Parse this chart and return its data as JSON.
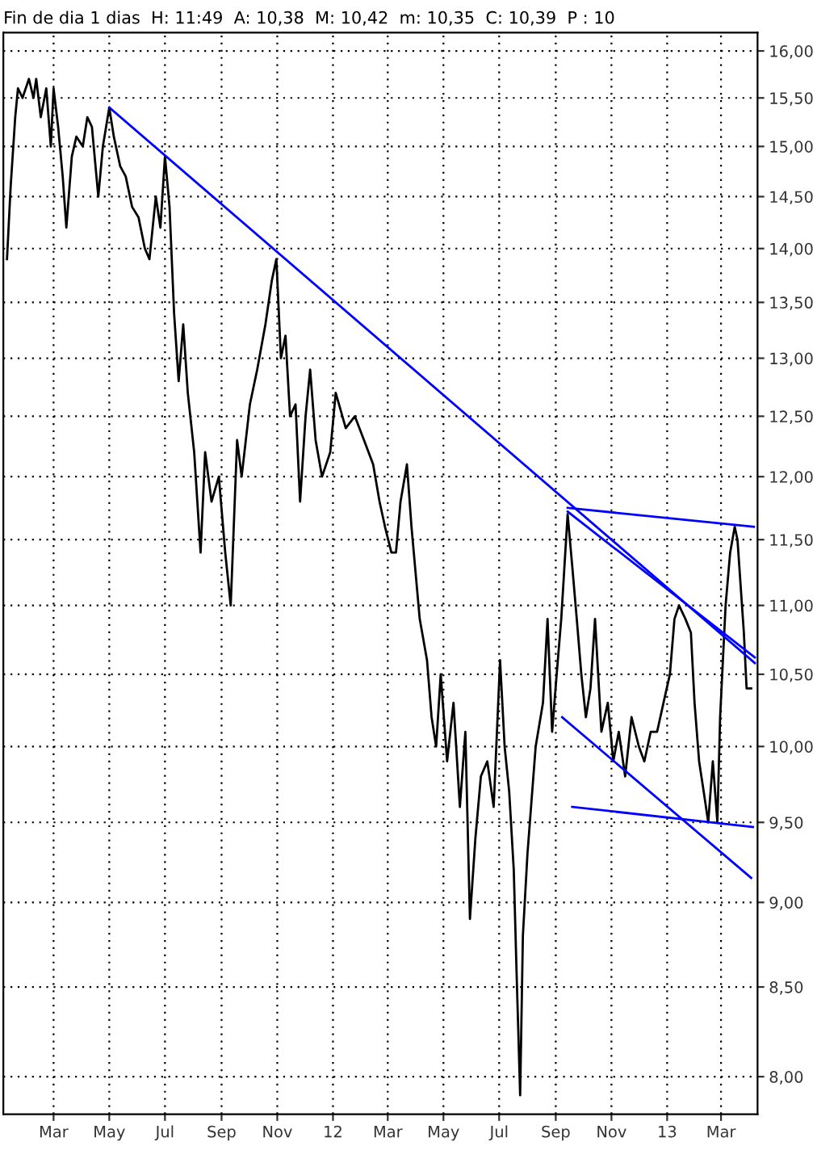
{
  "chart_data": {
    "type": "line",
    "title": "Fin de dia 1 dias  H: 11:49  A: 10,38  M: 10,42  m: 10,35  C: 10,39  P : 10",
    "log": "y",
    "grid": true,
    "line_style": "solid",
    "xlim": [
      "2011-01-05",
      "2013-04-10"
    ],
    "ylim": [
      7.8,
      16.2
    ],
    "xticks": [
      {
        "value": "2011-03-01",
        "label": "Mar"
      },
      {
        "value": "2011-05-01",
        "label": "May"
      },
      {
        "value": "2011-07-01",
        "label": "Jul"
      },
      {
        "value": "2011-09-01",
        "label": "Sep"
      },
      {
        "value": "2011-11-01",
        "label": "Nov"
      },
      {
        "value": "2012-01-01",
        "label": "12"
      },
      {
        "value": "2012-03-01",
        "label": "Mar"
      },
      {
        "value": "2012-05-01",
        "label": "May"
      },
      {
        "value": "2012-07-01",
        "label": "Jul"
      },
      {
        "value": "2012-09-01",
        "label": "Sep"
      },
      {
        "value": "2012-11-01",
        "label": "Nov"
      },
      {
        "value": "2013-01-01",
        "label": "13"
      },
      {
        "value": "2013-03-01",
        "label": "Mar"
      }
    ],
    "yticks": [
      {
        "value": 8.0,
        "label": "8,00"
      },
      {
        "value": 8.5,
        "label": "8,50"
      },
      {
        "value": 9.0,
        "label": "9,00"
      },
      {
        "value": 9.5,
        "label": "9,50"
      },
      {
        "value": 10.0,
        "label": "10,00"
      },
      {
        "value": 10.5,
        "label": "10,50"
      },
      {
        "value": 11.0,
        "label": "11,00"
      },
      {
        "value": 11.5,
        "label": "11,50"
      },
      {
        "value": 12.0,
        "label": "12,00"
      },
      {
        "value": 12.5,
        "label": "12,50"
      },
      {
        "value": 13.0,
        "label": "13,00"
      },
      {
        "value": 13.5,
        "label": "13,50"
      },
      {
        "value": 14.0,
        "label": "14,00"
      },
      {
        "value": 14.5,
        "label": "14,50"
      },
      {
        "value": 15.0,
        "label": "15,00"
      },
      {
        "value": 15.5,
        "label": "15,50"
      },
      {
        "value": 16.0,
        "label": "16,00"
      }
    ],
    "series": [
      {
        "color": "#000000",
        "x": [
          "2011-01-09",
          "2011-01-13",
          "2011-01-18",
          "2011-01-21",
          "2011-01-26",
          "2011-02-02",
          "2011-02-07",
          "2011-02-10",
          "2011-02-15",
          "2011-02-21",
          "2011-02-26",
          "2011-03-01",
          "2011-03-06",
          "2011-03-11",
          "2011-03-15",
          "2011-03-21",
          "2011-03-26",
          "2011-04-02",
          "2011-04-07",
          "2011-04-12",
          "2011-04-19",
          "2011-04-24",
          "2011-05-01",
          "2011-05-06",
          "2011-05-13",
          "2011-05-19",
          "2011-05-26",
          "2011-06-02",
          "2011-06-09",
          "2011-06-14",
          "2011-06-21",
          "2011-06-26",
          "2011-07-01",
          "2011-07-06",
          "2011-07-11",
          "2011-07-16",
          "2011-07-21",
          "2011-07-26",
          "2011-08-02",
          "2011-08-09",
          "2011-08-14",
          "2011-08-21",
          "2011-08-29",
          "2011-09-05",
          "2011-09-11",
          "2011-09-18",
          "2011-09-23",
          "2011-10-02",
          "2011-10-10",
          "2011-10-19",
          "2011-10-26",
          "2011-10-31",
          "2011-11-05",
          "2011-11-10",
          "2011-11-15",
          "2011-11-21",
          "2011-11-26",
          "2011-12-02",
          "2011-12-07",
          "2011-12-13",
          "2011-12-20",
          "2011-12-29",
          "2012-01-04",
          "2012-01-15",
          "2012-01-25",
          "2012-02-04",
          "2012-02-14",
          "2012-02-21",
          "2012-02-27",
          "2012-03-05",
          "2012-03-10",
          "2012-03-15",
          "2012-03-22",
          "2012-03-27",
          "2012-04-05",
          "2012-04-13",
          "2012-04-18",
          "2012-04-23",
          "2012-04-28",
          "2012-05-05",
          "2012-05-12",
          "2012-05-19",
          "2012-05-25",
          "2012-05-30",
          "2012-06-05",
          "2012-06-11",
          "2012-06-18",
          "2012-06-25",
          "2012-07-02",
          "2012-07-07",
          "2012-07-12",
          "2012-07-17",
          "2012-07-20",
          "2012-07-24",
          "2012-07-27",
          "2012-08-01",
          "2012-08-10",
          "2012-08-18",
          "2012-08-23",
          "2012-08-28",
          "2012-09-02",
          "2012-09-07",
          "2012-09-14",
          "2012-09-19",
          "2012-09-24",
          "2012-09-29",
          "2012-10-04",
          "2012-10-09",
          "2012-10-14",
          "2012-10-21",
          "2012-10-28",
          "2012-11-03",
          "2012-11-09",
          "2012-11-16",
          "2012-11-23",
          "2012-12-01",
          "2012-12-07",
          "2012-12-14",
          "2012-12-21",
          "2012-12-28",
          "2013-01-04",
          "2013-01-09",
          "2013-01-14",
          "2013-01-21",
          "2013-01-27",
          "2013-01-31",
          "2013-02-05",
          "2013-02-10",
          "2013-02-15",
          "2013-02-20",
          "2013-02-25",
          "2013-02-28",
          "2013-03-06",
          "2013-03-11",
          "2013-03-16",
          "2013-03-19",
          "2013-03-26",
          "2013-03-29",
          "2013-04-03"
        ],
        "values": [
          13.9,
          14.6,
          15.3,
          15.6,
          15.5,
          15.7,
          15.5,
          15.7,
          15.3,
          15.6,
          15.0,
          15.6,
          15.2,
          14.7,
          14.2,
          14.9,
          15.1,
          15.0,
          15.3,
          15.2,
          14.5,
          15.0,
          15.4,
          15.1,
          14.8,
          14.7,
          14.4,
          14.3,
          14.0,
          13.9,
          14.5,
          14.2,
          14.9,
          14.4,
          13.4,
          12.8,
          13.3,
          12.7,
          12.2,
          11.4,
          12.2,
          11.8,
          12.0,
          11.4,
          11.0,
          12.3,
          12.0,
          12.6,
          12.9,
          13.3,
          13.7,
          13.9,
          13.0,
          13.2,
          12.5,
          12.6,
          11.8,
          12.5,
          12.9,
          12.3,
          12.0,
          12.2,
          12.7,
          12.4,
          12.5,
          12.3,
          12.1,
          11.8,
          11.6,
          11.4,
          11.4,
          11.8,
          12.1,
          11.6,
          10.9,
          10.6,
          10.2,
          10.0,
          10.5,
          9.9,
          10.3,
          9.6,
          10.1,
          8.9,
          9.4,
          9.8,
          9.9,
          9.6,
          10.6,
          10.0,
          9.7,
          9.2,
          8.6,
          7.9,
          8.8,
          9.3,
          10.0,
          10.3,
          10.9,
          10.1,
          10.5,
          10.9,
          11.7,
          11.3,
          10.9,
          10.5,
          10.2,
          10.4,
          10.9,
          10.1,
          10.3,
          9.9,
          10.1,
          9.8,
          10.2,
          10.0,
          9.9,
          10.1,
          10.1,
          10.3,
          10.5,
          10.9,
          11.0,
          10.9,
          10.8,
          10.3,
          9.9,
          9.7,
          9.5,
          9.9,
          9.5,
          10.2,
          11.0,
          11.4,
          11.6,
          11.5,
          10.8,
          10.4,
          10.4
        ]
      },
      {
        "color": "#0000ff",
        "x": [
          "2011-05-01",
          "2013-04-07"
        ],
        "values": [
          15.4,
          10.58
        ]
      },
      {
        "color": "#0000ff",
        "x": [
          "2012-09-14",
          "2013-04-07"
        ],
        "values": [
          11.72,
          10.62
        ]
      },
      {
        "color": "#0000ff",
        "x": [
          "2012-09-14",
          "2013-04-06"
        ],
        "values": [
          11.75,
          11.6
        ]
      },
      {
        "color": "#0000ff",
        "x": [
          "2012-09-08",
          "2013-04-03"
        ],
        "values": [
          10.2,
          9.15
        ]
      },
      {
        "color": "#0000ff",
        "x": [
          "2012-09-19",
          "2013-04-05"
        ],
        "values": [
          9.6,
          9.47
        ]
      }
    ]
  }
}
